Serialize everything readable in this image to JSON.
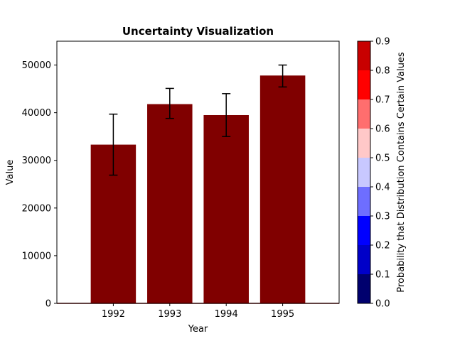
{
  "chart_data": {
    "type": "bar",
    "title": "Uncertainty Visualization",
    "xlabel": "Year",
    "ylabel": "Value",
    "categories": [
      "1992",
      "1993",
      "1994",
      "1995"
    ],
    "values": [
      33300,
      41800,
      39500,
      47800
    ],
    "error_low": [
      26900,
      38800,
      35000,
      45400
    ],
    "error_high": [
      39700,
      45100,
      44000,
      50000
    ],
    "x_range": [
      1991,
      1996
    ],
    "ylim": [
      0,
      55000
    ],
    "y_ticks": [
      0,
      10000,
      20000,
      30000,
      40000,
      50000
    ],
    "y_tick_labels": [
      "0",
      "10000",
      "20000",
      "30000",
      "40000",
      "50000"
    ],
    "baseline": {
      "value": 0,
      "color": "#800000"
    },
    "bar_color": "#800000",
    "grid": false,
    "colorbar": {
      "label": "Probability that Distribution Contains Certain Values",
      "range": [
        0.0,
        0.9
      ],
      "ticks": [
        "0.0",
        "0.1",
        "0.2",
        "0.3",
        "0.4",
        "0.5",
        "0.6",
        "0.7",
        "0.8",
        "0.9"
      ],
      "colors": [
        "#00006e",
        "#0000c8",
        "#0000ff",
        "#6e6eff",
        "#c8c8ff",
        "#ffc8c8",
        "#ff6e6e",
        "#ff0000",
        "#c80000"
      ]
    }
  }
}
